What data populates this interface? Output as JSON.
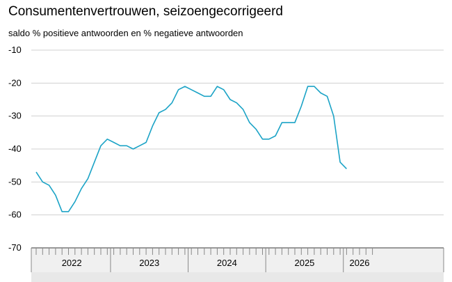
{
  "chart_data": {
    "type": "line",
    "title": "Consumentenvertrouwen, seizoengecorrigeerd",
    "subtitle": "saldo % positieve antwoorden en % negatieve antwoorden",
    "ylim": [
      -70,
      -10
    ],
    "yticks": [
      "-10",
      "-20",
      "-30",
      "-40",
      "-50",
      "-60",
      "-70"
    ],
    "grid": true,
    "years": [
      {
        "label": "2022",
        "months": 12
      },
      {
        "label": "2023",
        "months": 12
      },
      {
        "label": "2024",
        "months": 12
      },
      {
        "label": "2025",
        "months": 12
      },
      {
        "label": "2026",
        "months": 5
      }
    ],
    "color": "#1ba3c6",
    "series": [
      {
        "values": [
          -47,
          -50,
          -51,
          -54,
          -59,
          -59,
          -56,
          -52,
          -49,
          -44,
          -39,
          -37,
          -38,
          -39,
          -39,
          -40,
          -39,
          -38,
          -33,
          -29,
          -28,
          -26,
          -22,
          -21,
          -22,
          -23,
          -24,
          -24,
          -21,
          -22,
          -25,
          -26,
          -28,
          -32,
          -34,
          -37,
          -37,
          -36,
          -32,
          -32,
          -32,
          -27,
          -21,
          -21,
          -23,
          -24,
          -30,
          -44,
          -46
        ]
      }
    ]
  }
}
